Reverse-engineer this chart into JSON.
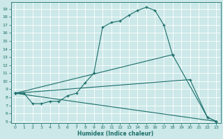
{
  "xlabel": "Humidex (Indice chaleur)",
  "bg_color": "#cce8e8",
  "line_color": "#1a6e6a",
  "xlim": [
    -0.5,
    23.5
  ],
  "ylim": [
    4.8,
    19.8
  ],
  "xticks": [
    0,
    1,
    2,
    3,
    4,
    5,
    6,
    7,
    8,
    9,
    10,
    11,
    12,
    13,
    14,
    15,
    16,
    17,
    18,
    19,
    20,
    21,
    22,
    23
  ],
  "yticks": [
    5,
    6,
    7,
    8,
    9,
    10,
    11,
    12,
    13,
    14,
    15,
    16,
    17,
    18,
    19
  ],
  "line1_x": [
    0,
    1,
    2,
    3,
    4,
    5,
    6,
    7,
    8,
    9,
    10,
    11,
    12,
    13,
    14,
    15,
    16,
    17,
    18
  ],
  "line1_y": [
    8.5,
    8.5,
    7.2,
    7.2,
    7.5,
    7.5,
    8.2,
    8.5,
    9.8,
    11.0,
    16.7,
    17.3,
    17.5,
    18.2,
    18.8,
    19.2,
    18.8,
    17.0,
    13.3
  ],
  "line2_x": [
    0,
    23
  ],
  "line2_y": [
    8.5,
    5.0
  ],
  "line3_x": [
    0,
    20,
    22,
    23
  ],
  "line3_y": [
    8.5,
    10.2,
    5.5,
    5.0
  ],
  "line4_x": [
    0,
    18,
    22,
    23
  ],
  "line4_y": [
    8.5,
    13.3,
    5.5,
    5.0
  ]
}
